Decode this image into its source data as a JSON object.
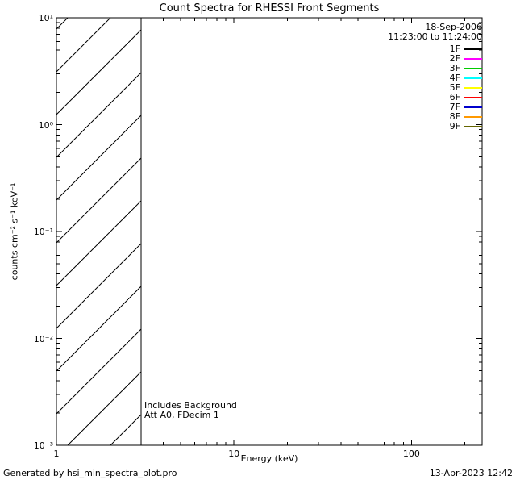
{
  "chart_data": {
    "type": "line",
    "title": "Count Spectra for RHESSI Front Segments",
    "xlabel": "Energy (keV)",
    "ylabel": "counts cm-2 s-1 keV-1",
    "ylabel_display": "counts cm⁻² s⁻¹ keV⁻¹",
    "xscale": "log",
    "yscale": "log",
    "xlim": [
      1,
      250
    ],
    "ylim": [
      0.001,
      10
    ],
    "x_ticks": [
      1,
      10,
      100
    ],
    "x_tick_labels": [
      "1",
      "10",
      "100"
    ],
    "y_ticks": [
      10,
      1,
      0.1,
      0.01,
      0.001
    ],
    "y_tick_labels": [
      "10¹",
      "10⁰",
      "10⁻¹",
      "10⁻²",
      "10⁻³"
    ],
    "grid": false,
    "legend_position": "top-right",
    "header": {
      "date": "18-Sep-2006",
      "time_range": "11:23:00 to 11:24:00"
    },
    "series": [
      {
        "name": "1F",
        "color": "#000000",
        "values": []
      },
      {
        "name": "2F",
        "color": "#ff00ff",
        "values": []
      },
      {
        "name": "3F",
        "color": "#00cc00",
        "values": []
      },
      {
        "name": "4F",
        "color": "#00ffff",
        "values": []
      },
      {
        "name": "5F",
        "color": "#ffff00",
        "values": []
      },
      {
        "name": "6F",
        "color": "#ff0000",
        "values": []
      },
      {
        "name": "7F",
        "color": "#0000cc",
        "values": []
      },
      {
        "name": "8F",
        "color": "#ff9900",
        "values": []
      },
      {
        "name": "9F",
        "color": "#666600",
        "values": []
      }
    ],
    "background_hatch_region": {
      "x_from": 1,
      "x_to": 3,
      "spans_full_y": true,
      "style": "diagonal-hatch"
    },
    "annotations": [
      "Includes Background",
      "Att A0, FDecim 1"
    ],
    "footer": {
      "left": "Generated by hsi_min_spectra_plot.pro",
      "right": "13-Apr-2023 12:42"
    }
  }
}
